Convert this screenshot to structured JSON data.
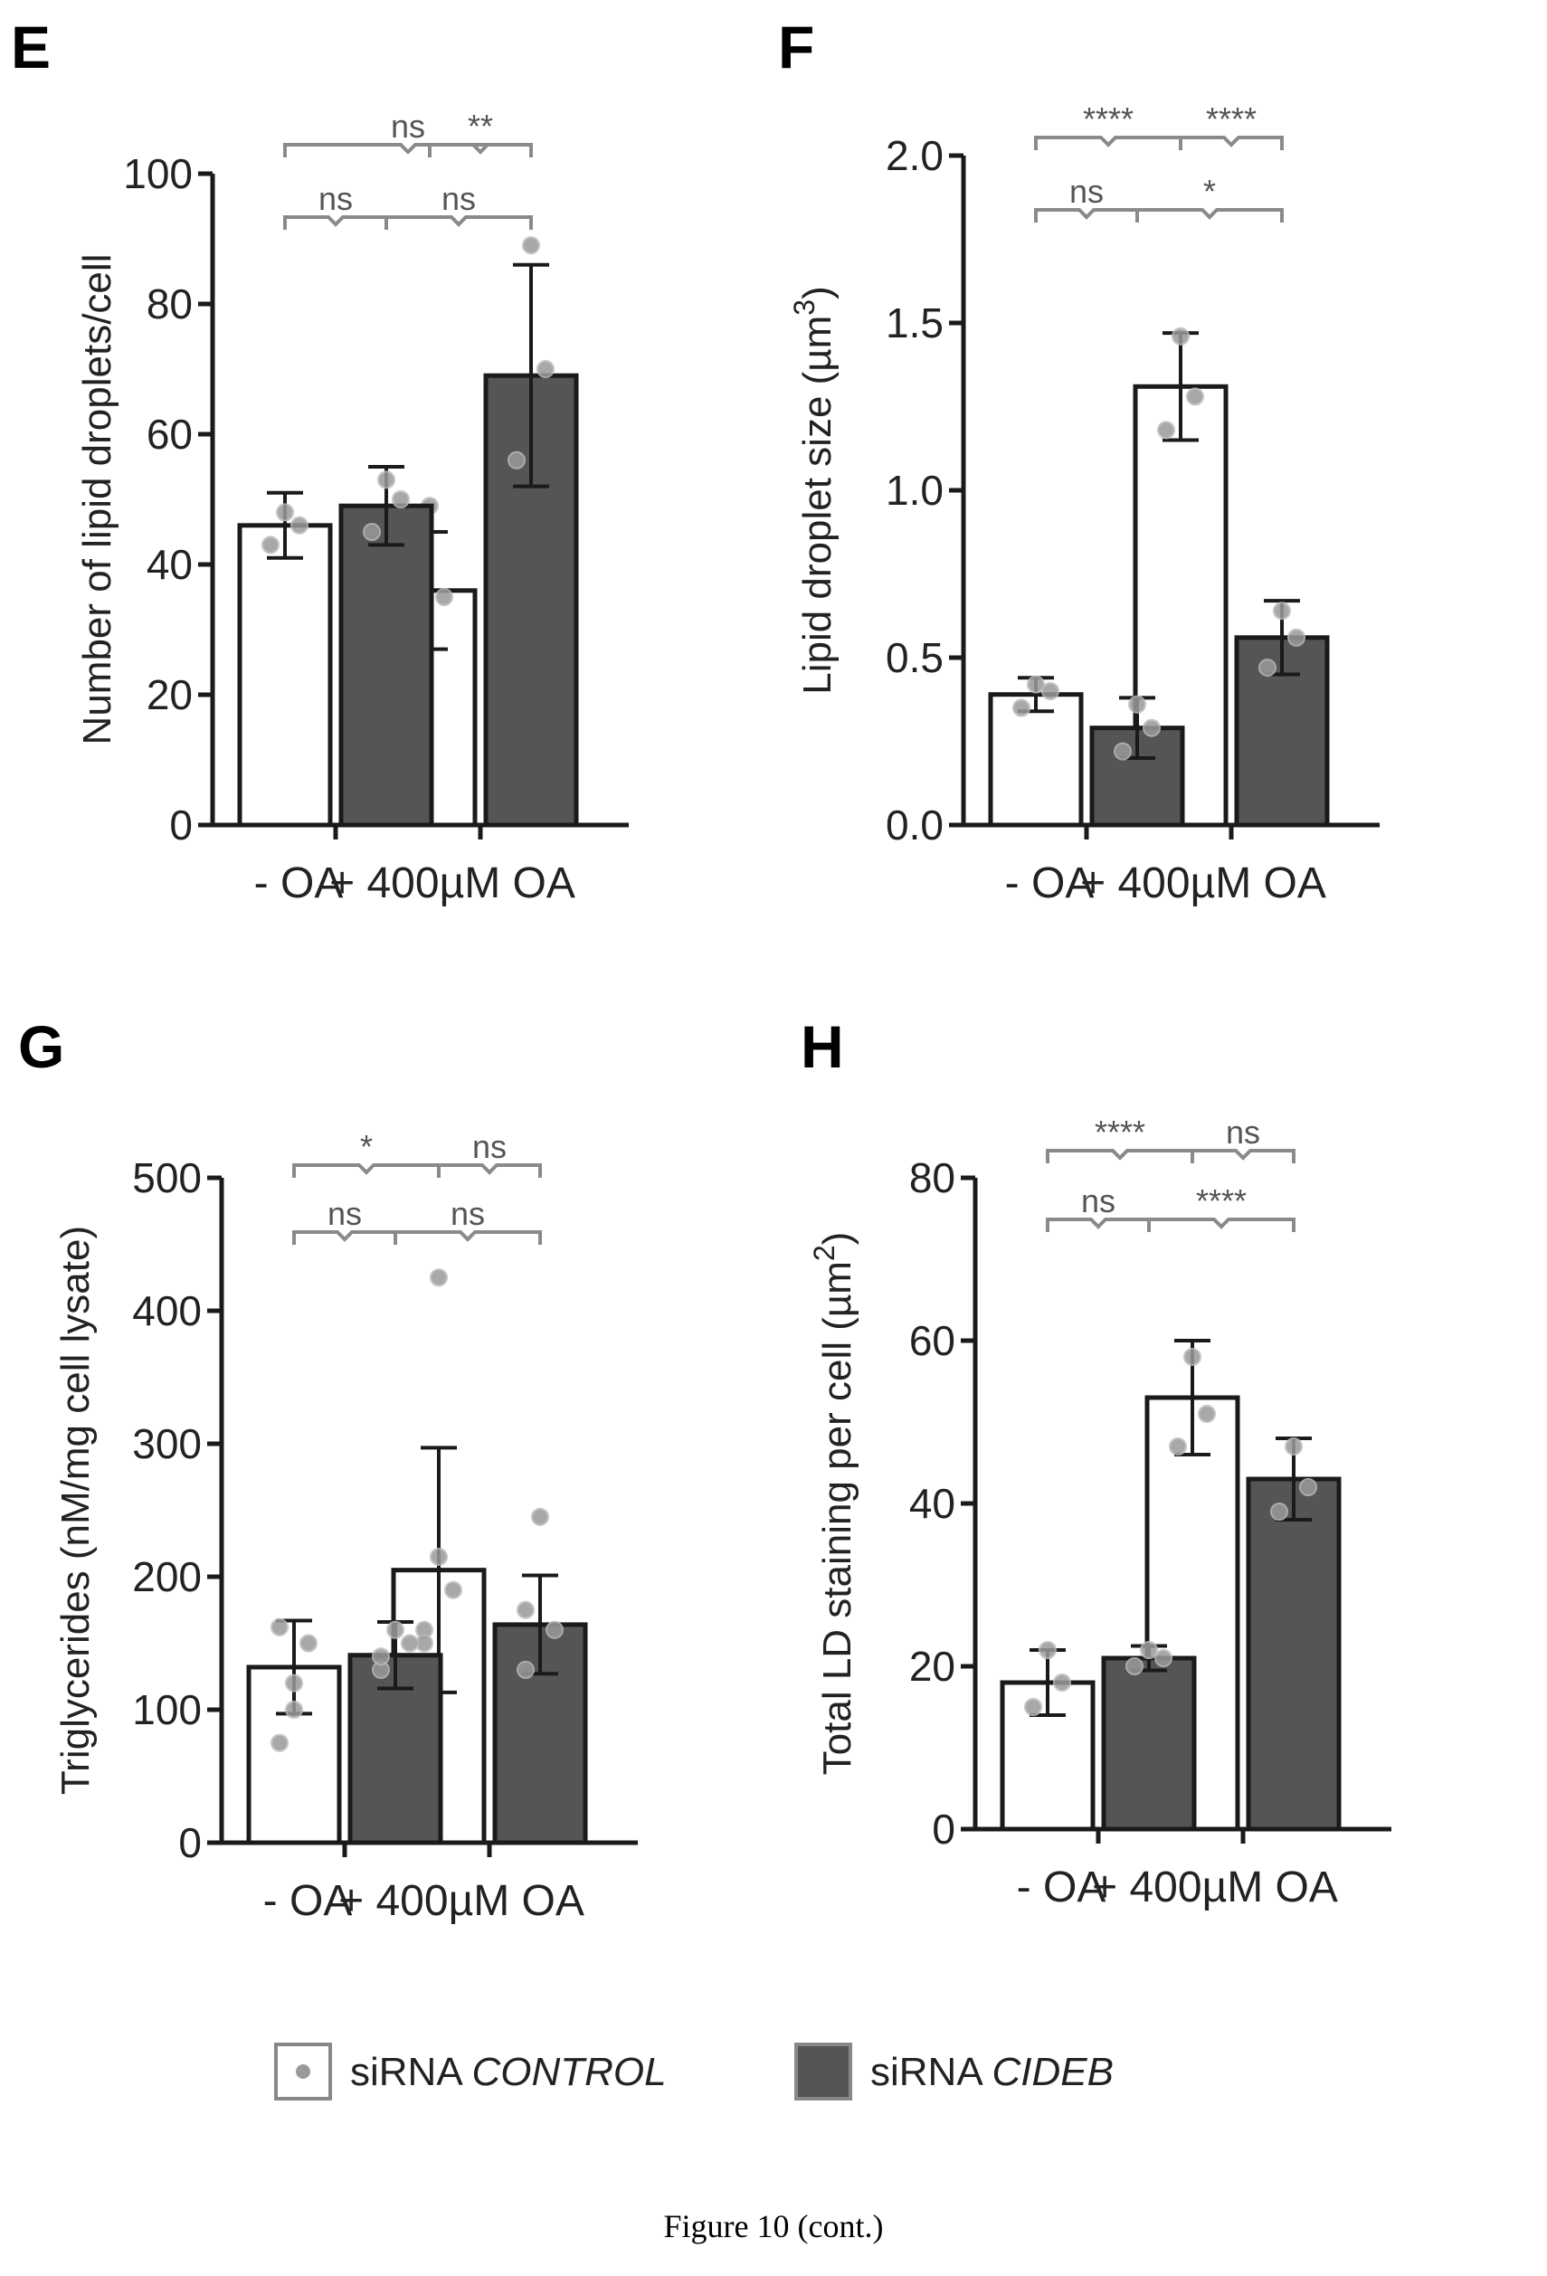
{
  "caption": "Figure 10 (cont.)",
  "colors": {
    "control_fill": "#ffffff",
    "cideb_fill": "#555555",
    "stroke": "#1a1a1a",
    "dot": "#9a9a9a",
    "bracket": "#8a8a8a"
  },
  "legend": [
    {
      "prefix": "siRNA ",
      "name": "CONTROL"
    },
    {
      "prefix": "siRNA ",
      "name": "CIDEB"
    }
  ],
  "chart_data": [
    {
      "panel": "E",
      "type": "bar",
      "ylabel": "Number of lipid droplets/cell",
      "ylim": [
        0,
        100
      ],
      "yticks": [
        0,
        20,
        40,
        60,
        80,
        100
      ],
      "ytick_labels": [
        "0",
        "20",
        "40",
        "60",
        "80",
        "100"
      ],
      "categories": [
        "- OA",
        "+ 400µM OA"
      ],
      "series": [
        {
          "name": "siRNA CONTROL",
          "values": [
            46,
            36
          ],
          "errors": [
            5,
            9
          ],
          "points": [
            [
              43,
              48,
              46
            ],
            [
              30,
              49,
              35
            ]
          ]
        },
        {
          "name": "siRNA CIDEB",
          "values": [
            49,
            69
          ],
          "errors": [
            6,
            17
          ],
          "points": [
            [
              45,
              53,
              50
            ],
            [
              56,
              89,
              70
            ]
          ]
        }
      ],
      "significance": [
        {
          "from": [
            0,
            0
          ],
          "to": [
            1,
            1
          ],
          "label": "ns",
          "level": 2
        },
        {
          "from": [
            1,
            0
          ],
          "to": [
            1,
            1
          ],
          "label": "**",
          "level": 2
        },
        {
          "from": [
            0,
            0
          ],
          "to": [
            0,
            1
          ],
          "label": "ns",
          "level": 1
        },
        {
          "from": [
            0,
            1
          ],
          "to": [
            1,
            1
          ],
          "label": "ns",
          "level": 1
        }
      ]
    },
    {
      "panel": "F",
      "type": "bar",
      "ylabel": "Lipid droplet size (µm",
      "ylabel_sup": "3",
      "ylabel_end": ")",
      "ylim": [
        0,
        2.0
      ],
      "yticks": [
        0,
        0.5,
        1.0,
        1.5,
        2.0
      ],
      "ytick_labels": [
        "0.0",
        "0.5",
        "1.0",
        "1.5",
        "2.0"
      ],
      "categories": [
        "- OA",
        "+ 400µM OA"
      ],
      "series": [
        {
          "name": "siRNA CONTROL",
          "values": [
            0.39,
            1.31
          ],
          "errors": [
            0.05,
            0.16
          ],
          "points": [
            [
              0.35,
              0.42,
              0.4
            ],
            [
              1.18,
              1.46,
              1.28
            ]
          ]
        },
        {
          "name": "siRNA CIDEB",
          "values": [
            0.29,
            0.56
          ],
          "errors": [
            0.09,
            0.11
          ],
          "points": [
            [
              0.22,
              0.36,
              0.29
            ],
            [
              0.47,
              0.64,
              0.56
            ]
          ]
        }
      ],
      "significance": [
        {
          "from": [
            0,
            0
          ],
          "to": [
            1,
            0
          ],
          "label": "****",
          "level": 2
        },
        {
          "from": [
            1,
            0
          ],
          "to": [
            1,
            1
          ],
          "label": "****",
          "level": 2
        },
        {
          "from": [
            0,
            0
          ],
          "to": [
            0,
            1
          ],
          "label": "ns",
          "level": 1
        },
        {
          "from": [
            0,
            1
          ],
          "to": [
            1,
            1
          ],
          "label": "*",
          "level": 1
        }
      ]
    },
    {
      "panel": "G",
      "type": "bar",
      "ylabel": "Triglycerides (nM/mg cell lysate)",
      "ylim": [
        0,
        500
      ],
      "yticks": [
        0,
        100,
        200,
        300,
        400,
        500
      ],
      "ytick_labels": [
        "0",
        "100",
        "200",
        "300",
        "400",
        "500"
      ],
      "categories": [
        "- OA",
        "+ 400µM OA"
      ],
      "series": [
        {
          "name": "siRNA CONTROL",
          "values": [
            132,
            205
          ],
          "errors": [
            35,
            92
          ],
          "points": [
            [
              75,
              100,
              150,
              162,
              120
            ],
            [
              160,
              425,
              190,
              150,
              215
            ]
          ]
        },
        {
          "name": "siRNA CIDEB",
          "values": [
            141,
            164
          ],
          "errors": [
            25,
            37
          ],
          "points": [
            [
              130,
              160,
              150,
              140
            ],
            [
              130,
              245,
              160,
              175
            ]
          ]
        }
      ],
      "significance": [
        {
          "from": [
            0,
            0
          ],
          "to": [
            1,
            0
          ],
          "label": "*",
          "level": 2
        },
        {
          "from": [
            1,
            0
          ],
          "to": [
            1,
            1
          ],
          "label": "ns",
          "level": 2
        },
        {
          "from": [
            0,
            0
          ],
          "to": [
            0,
            1
          ],
          "label": "ns",
          "level": 1
        },
        {
          "from": [
            0,
            1
          ],
          "to": [
            1,
            1
          ],
          "label": "ns",
          "level": 1
        }
      ]
    },
    {
      "panel": "H",
      "type": "bar",
      "ylabel": "Total LD staining per cell (µm",
      "ylabel_sup": "2",
      "ylabel_end": ")",
      "ylim": [
        0,
        80
      ],
      "yticks": [
        0,
        20,
        40,
        60,
        80
      ],
      "ytick_labels": [
        "0",
        "20",
        "40",
        "60",
        "80"
      ],
      "categories": [
        "- OA",
        "+ 400µM OA"
      ],
      "series": [
        {
          "name": "siRNA CONTROL",
          "values": [
            18,
            53
          ],
          "errors": [
            4,
            7
          ],
          "points": [
            [
              15,
              22,
              18
            ],
            [
              47,
              58,
              51
            ]
          ]
        },
        {
          "name": "siRNA CIDEB",
          "values": [
            21,
            43
          ],
          "errors": [
            1.5,
            5
          ],
          "points": [
            [
              20,
              22,
              21
            ],
            [
              39,
              47,
              42
            ]
          ]
        }
      ],
      "significance": [
        {
          "from": [
            0,
            0
          ],
          "to": [
            1,
            0
          ],
          "label": "****",
          "level": 2
        },
        {
          "from": [
            1,
            0
          ],
          "to": [
            1,
            1
          ],
          "label": "ns",
          "level": 2
        },
        {
          "from": [
            0,
            0
          ],
          "to": [
            0,
            1
          ],
          "label": "ns",
          "level": 1
        },
        {
          "from": [
            0,
            1
          ],
          "to": [
            1,
            1
          ],
          "label": "****",
          "level": 1
        }
      ]
    }
  ]
}
